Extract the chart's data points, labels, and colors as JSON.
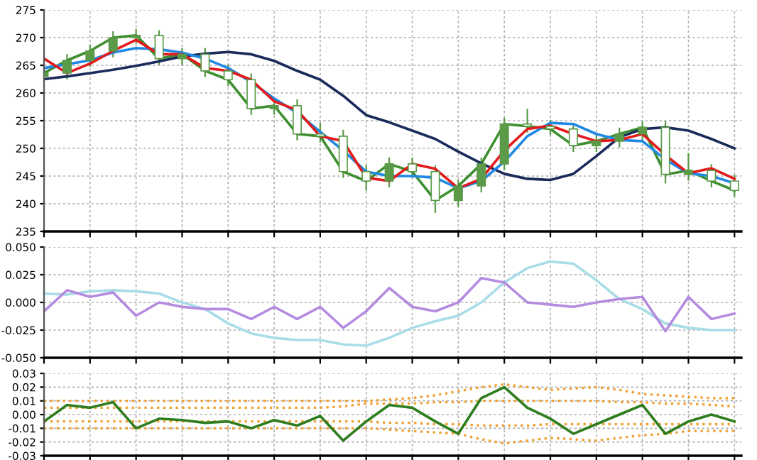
{
  "chart_data": [
    {
      "type": "candlestick",
      "categories": [
        null,
        null,
        null,
        null,
        null,
        null,
        null,
        null,
        null,
        null,
        null,
        null,
        null,
        null,
        null,
        null,
        null,
        null,
        null,
        null,
        null,
        null,
        null,
        null,
        null,
        null,
        null,
        null,
        null,
        null,
        null
      ],
      "color": "#5a9a48",
      "ohlc": [
        [
          263,
          264.6,
          262,
          263.6
        ],
        [
          263.6,
          266.9,
          262.6,
          265.9
        ],
        [
          265.9,
          268.6,
          264.9,
          267.6
        ],
        [
          267.6,
          271,
          266.6,
          270
        ],
        [
          270,
          271.4,
          269,
          270.4
        ],
        [
          270.4,
          271.2,
          265.2,
          266.2
        ],
        [
          266.2,
          268,
          265.2,
          267
        ],
        [
          267,
          268,
          263,
          264
        ],
        [
          264,
          265,
          261.4,
          262.4
        ],
        [
          262.4,
          263.4,
          256.2,
          257.2
        ],
        [
          257.2,
          258.7,
          256.2,
          257.7
        ],
        [
          257.7,
          258.7,
          251.6,
          252.6
        ],
        [
          252.6,
          254.5,
          251.2,
          252.2
        ],
        [
          252.2,
          253.2,
          244.8,
          245.8
        ],
        [
          245.8,
          246.8,
          242.5,
          244.1
        ],
        [
          244.1,
          248.2,
          243.1,
          247.2
        ],
        [
          247.2,
          248.2,
          244.8,
          245.8
        ],
        [
          245.8,
          246.8,
          238.5,
          240.6
        ],
        [
          240.6,
          244.2,
          239.6,
          243.2
        ],
        [
          243.2,
          248.2,
          242.2,
          247.2
        ],
        [
          247.2,
          255.4,
          246.2,
          254.4
        ],
        [
          254.4,
          257,
          253,
          254
        ],
        [
          254,
          255,
          252.5,
          253.5
        ],
        [
          253.5,
          254.5,
          249.5,
          250.5
        ],
        [
          250.5,
          252.3,
          249.5,
          251.3
        ],
        [
          251.3,
          253.6,
          250.3,
          252.6
        ],
        [
          252.6,
          254.8,
          251.6,
          253.8
        ],
        [
          253.8,
          254.8,
          243.8,
          245.3
        ],
        [
          245.3,
          249,
          244.3,
          246
        ],
        [
          246,
          247,
          243.1,
          244.1
        ],
        [
          244.1,
          245.1,
          241.4,
          242.4
        ]
      ],
      "series": [
        {
          "type": "line",
          "color": "#3d8f2f",
          "values": [
            263.6,
            265.9,
            267.6,
            270,
            270.4,
            266.2,
            267,
            264,
            262.4,
            257.2,
            257.7,
            252.6,
            252.2,
            245.8,
            244.1,
            247.2,
            245.8,
            240.6,
            243.2,
            247.2,
            254.4,
            254,
            253.5,
            250.5,
            251.3,
            252.6,
            253.8,
            245.3,
            246,
            244.1,
            242.4
          ]
        },
        {
          "type": "line",
          "color": "#1a2a5a",
          "values": [
            262.5,
            263,
            263.6,
            264.2,
            264.9,
            265.7,
            266.6,
            267.1,
            267.4,
            267,
            265.8,
            264,
            262.4,
            259.5,
            256,
            254.7,
            253.2,
            251.7,
            249.4,
            247.3,
            245.4,
            244.5,
            244.3,
            245.4,
            248.6,
            252,
            253.5,
            253.8,
            253.2,
            251.7,
            250
          ]
        },
        {
          "type": "line",
          "color": "#1e88e5",
          "values": [
            264.5,
            265.2,
            265.9,
            267.3,
            268.1,
            267.9,
            267.3,
            266.2,
            264.5,
            262,
            259,
            256.4,
            253,
            249.6,
            245.8,
            245,
            245,
            244.7,
            242.8,
            244.1,
            247.6,
            252.2,
            254.6,
            254.4,
            252.6,
            251.5,
            251.3,
            248,
            245.5,
            245,
            243.7
          ]
        },
        {
          "type": "line",
          "color": "#e31a1c",
          "values": [
            266.2,
            263.6,
            265.3,
            267.6,
            269.6,
            267,
            267,
            264.5,
            264,
            262.4,
            258.5,
            256.9,
            252.2,
            251.3,
            244.7,
            244.1,
            247.2,
            246.3,
            242.8,
            244.5,
            249.6,
            253.5,
            254.1,
            252.6,
            251.3,
            251.5,
            252.6,
            248.8,
            245.5,
            246.4,
            244.5
          ]
        }
      ],
      "ylim": [
        235,
        275
      ],
      "yticks": [
        235,
        240,
        245,
        250,
        255,
        260,
        265,
        270,
        275
      ],
      "grid": true,
      "tick_labels": "y"
    },
    {
      "type": "line",
      "categories": [
        null,
        null,
        null,
        null,
        null,
        null,
        null,
        null,
        null,
        null,
        null,
        null,
        null,
        null,
        null,
        null,
        null,
        null,
        null,
        null,
        null,
        null,
        null,
        null,
        null,
        null,
        null,
        null,
        null,
        null,
        null
      ],
      "series": [
        {
          "color": "#a8dde8",
          "values": [
            0.008,
            0.007,
            0.01,
            0.011,
            0.01,
            0.008,
            0,
            -0.006,
            -0.019,
            -0.028,
            -0.032,
            -0.034,
            -0.034,
            -0.038,
            -0.039,
            -0.032,
            -0.023,
            -0.017,
            -0.012,
            0,
            0.018,
            0.031,
            0.037,
            0.035,
            0.02,
            0.003,
            -0.006,
            -0.019,
            -0.023,
            -0.025,
            -0.025
          ]
        },
        {
          "color": "#b58be0",
          "values": [
            -0.008,
            0.011,
            0.005,
            0.009,
            -0.012,
            0,
            -0.004,
            -0.006,
            -0.006,
            -0.015,
            -0.004,
            -0.015,
            -0.004,
            -0.023,
            -0.008,
            0.013,
            -0.004,
            -0.008,
            0,
            0.022,
            0.018,
            0,
            -0.002,
            -0.004,
            0,
            0.003,
            0.005,
            -0.026,
            0.005,
            -0.015,
            -0.01
          ]
        }
      ],
      "ylim": [
        -0.05,
        0.05
      ],
      "yticks": [
        {
          "value": -0.05,
          "label": "-0.050"
        },
        {
          "value": -0.025,
          "label": "-0.025"
        },
        {
          "value": 0,
          "label": "0.000"
        },
        {
          "value": 0.025,
          "label": "0.025"
        },
        {
          "value": 0.05,
          "label": "0.050"
        }
      ],
      "grid": true,
      "tick_labels": "y"
    },
    {
      "type": "line",
      "categories": [
        null,
        null,
        null,
        null,
        null,
        null,
        null,
        null,
        null,
        null,
        null,
        null,
        null,
        null,
        null,
        null,
        null,
        null,
        null,
        null,
        null,
        null,
        null,
        null,
        null,
        null,
        null,
        null,
        null,
        null,
        null
      ],
      "series": [
        {
          "color": "#f0a030",
          "line_style": "dotted",
          "values": [
            0.01,
            0.01,
            0.01,
            0.01,
            0.01,
            0.01,
            0.01,
            0.01,
            0.01,
            0.01,
            0.01,
            0.01,
            0.01,
            0.01,
            0.01,
            0.011,
            0.012,
            0.014,
            0.017,
            0.02,
            0.022,
            0.02,
            0.018,
            0.019,
            0.02,
            0.018,
            0.015,
            0.014,
            0.013,
            0.012,
            0.012
          ]
        },
        {
          "color": "#f0a030",
          "line_style": "dotted",
          "values": [
            0.005,
            0.005,
            0.005,
            0.005,
            0.005,
            0.005,
            0.005,
            0.005,
            0.005,
            0.005,
            0.005,
            0.005,
            0.005,
            0.006,
            0.008,
            0.008,
            0.008,
            0.009,
            0.009,
            0.01,
            0.01,
            0.01,
            0.01,
            0.01,
            0.01,
            0.009,
            0.009,
            0.008,
            0.008,
            0.007,
            0.006
          ]
        },
        {
          "color": "#f0a030",
          "line_style": "dotted",
          "values": [
            -0.005,
            -0.005,
            -0.005,
            -0.005,
            -0.005,
            -0.005,
            -0.005,
            -0.005,
            -0.005,
            -0.005,
            -0.005,
            -0.005,
            -0.005,
            -0.005,
            -0.005,
            -0.006,
            -0.006,
            -0.007,
            -0.007,
            -0.008,
            -0.008,
            -0.008,
            -0.007,
            -0.007,
            -0.007,
            -0.007,
            -0.007,
            -0.007,
            -0.007,
            -0.007,
            -0.007
          ]
        },
        {
          "color": "#f0a030",
          "line_style": "dotted",
          "values": [
            -0.01,
            -0.01,
            -0.01,
            -0.01,
            -0.01,
            -0.01,
            -0.01,
            -0.01,
            -0.01,
            -0.01,
            -0.01,
            -0.01,
            -0.01,
            -0.01,
            -0.01,
            -0.011,
            -0.012,
            -0.013,
            -0.014,
            -0.018,
            -0.021,
            -0.019,
            -0.017,
            -0.018,
            -0.019,
            -0.017,
            -0.015,
            -0.014,
            -0.012,
            -0.012,
            -0.012
          ]
        },
        {
          "color": "#2e7d1e",
          "values": [
            -0.005,
            0.007,
            0.005,
            0.009,
            -0.01,
            -0.003,
            -0.004,
            -0.006,
            -0.005,
            -0.01,
            -0.004,
            -0.008,
            -0.001,
            -0.019,
            -0.005,
            0.007,
            0.005,
            -0.005,
            -0.014,
            0.012,
            0.02,
            0.005,
            -0.003,
            -0.014,
            -0.007,
            0,
            0.007,
            -0.014,
            -0.005,
            0,
            -0.005
          ]
        }
      ],
      "ylim": [
        -0.03,
        0.03
      ],
      "yticks": [
        {
          "value": -0.03,
          "label": "-0.03"
        },
        {
          "value": -0.02,
          "label": "-0.02"
        },
        {
          "value": -0.01,
          "label": "-0.01"
        },
        {
          "value": 0,
          "label": "0.00"
        },
        {
          "value": 0.01,
          "label": "0.01"
        },
        {
          "value": 0.02,
          "label": "0.02"
        },
        {
          "value": 0.03,
          "label": "0.03"
        }
      ],
      "grid": true,
      "tick_labels": "y"
    }
  ]
}
